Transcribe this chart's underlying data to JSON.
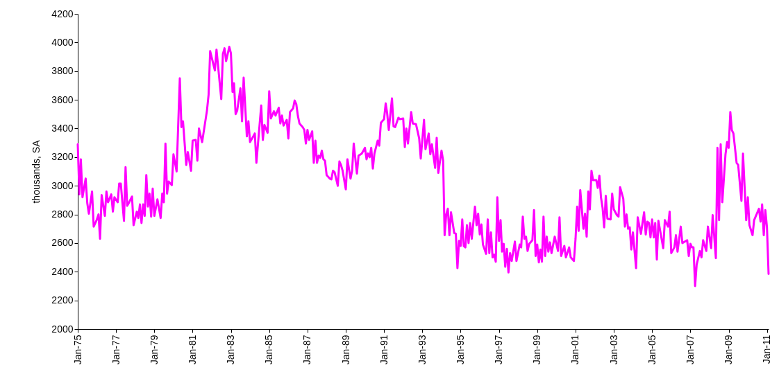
{
  "chart_data": {
    "type": "line",
    "ylabel": "thousands, SA",
    "line_style": "solid",
    "xlim": [
      "1975-01",
      "2011-02"
    ],
    "xticks": [
      {
        "value": "1975-01",
        "label": "Jan-75"
      },
      {
        "value": "1977-01",
        "label": "Jan-77"
      },
      {
        "value": "1979-01",
        "label": "Jan-79"
      },
      {
        "value": "1981-01",
        "label": "Jan-81"
      },
      {
        "value": "1983-01",
        "label": "Jan-83"
      },
      {
        "value": "1985-01",
        "label": "Jan-85"
      },
      {
        "value": "1987-01",
        "label": "Jan-87"
      },
      {
        "value": "1989-01",
        "label": "Jan-89"
      },
      {
        "value": "1991-01",
        "label": "Jan-91"
      },
      {
        "value": "1993-01",
        "label": "Jan-93"
      },
      {
        "value": "1995-01",
        "label": "Jan-95"
      },
      {
        "value": "1997-01",
        "label": "Jan-97"
      },
      {
        "value": "1999-01",
        "label": "Jan-99"
      },
      {
        "value": "2001-01",
        "label": "Jan-01"
      },
      {
        "value": "2003-01",
        "label": "Jan-03"
      },
      {
        "value": "2005-01",
        "label": "Jan-05"
      },
      {
        "value": "2007-01",
        "label": "Jan-07"
      },
      {
        "value": "2009-01",
        "label": "Jan-09"
      },
      {
        "value": "2011-01",
        "label": "Jan-11"
      }
    ],
    "ylim": [
      2000,
      4200
    ],
    "yticks": [
      2000,
      2200,
      2400,
      2600,
      2800,
      3000,
      3200,
      3400,
      3600,
      3800,
      4000,
      4200
    ],
    "x": [
      "1975-01",
      "1975-02",
      "1975-03",
      "1975-04",
      "1975-06",
      "1975-07",
      "1975-08",
      "1975-10",
      "1975-11",
      "1976-01",
      "1976-02",
      "1976-03",
      "1976-04",
      "1976-06",
      "1976-07",
      "1976-08",
      "1976-10",
      "1976-11",
      "1976-12",
      "1977-02",
      "1977-03",
      "1977-04",
      "1977-06",
      "1977-07",
      "1977-08",
      "1977-09",
      "1977-11",
      "1977-12",
      "1978-02",
      "1978-03",
      "1978-04",
      "1978-05",
      "1978-06",
      "1978-07",
      "1978-08",
      "1978-09",
      "1978-10",
      "1978-11",
      "1978-12",
      "1979-01",
      "1979-03",
      "1979-04",
      "1979-05",
      "1979-06",
      "1979-07",
      "1979-08",
      "1979-09",
      "1979-10",
      "1979-12",
      "1980-01",
      "1980-03",
      "1980-05",
      "1980-06",
      "1980-07",
      "1980-09",
      "1980-10",
      "1980-12",
      "1981-01",
      "1981-03",
      "1981-04",
      "1981-05",
      "1981-07",
      "1981-10",
      "1981-11",
      "1981-12",
      "1982-03",
      "1982-04",
      "1982-07",
      "1982-08",
      "1982-09",
      "1982-10",
      "1982-12",
      "1983-01",
      "1983-02",
      "1983-03",
      "1983-04",
      "1983-05",
      "1983-07",
      "1983-08",
      "1983-09",
      "1983-11",
      "1983-12",
      "1984-01",
      "1984-04",
      "1984-05",
      "1984-08",
      "1984-09",
      "1984-10",
      "1984-12",
      "1985-01",
      "1985-02",
      "1985-04",
      "1985-05",
      "1985-07",
      "1985-08",
      "1985-09",
      "1985-10",
      "1985-12",
      "1986-01",
      "1986-02",
      "1986-04",
      "1986-05",
      "1986-06",
      "1986-07",
      "1986-08",
      "1986-10",
      "1986-11",
      "1986-12",
      "1987-01",
      "1987-02",
      "1987-04",
      "1987-05",
      "1987-06",
      "1987-07",
      "1987-08",
      "1987-09",
      "1987-10",
      "1987-11",
      "1987-12",
      "1988-01",
      "1988-03",
      "1988-04",
      "1988-05",
      "1988-06",
      "1988-08",
      "1988-09",
      "1988-10",
      "1988-11",
      "1989-01",
      "1989-02",
      "1989-04",
      "1989-05",
      "1989-06",
      "1989-08",
      "1989-09",
      "1989-11",
      "1990-01",
      "1990-02",
      "1990-03",
      "1990-04",
      "1990-05",
      "1990-06",
      "1990-07",
      "1990-09",
      "1990-10",
      "1990-11",
      "1991-01",
      "1991-02",
      "1991-03",
      "1991-04",
      "1991-06",
      "1991-07",
      "1991-08",
      "1991-10",
      "1991-11",
      "1992-01",
      "1992-02",
      "1992-03",
      "1992-04",
      "1992-06",
      "1992-07",
      "1992-09",
      "1992-11",
      "1992-12",
      "1993-02",
      "1993-03",
      "1993-05",
      "1993-06",
      "1993-07",
      "1993-09",
      "1993-10",
      "1993-11",
      "1994-01",
      "1994-02",
      "1994-03",
      "1994-04",
      "1994-05",
      "1994-06",
      "1994-07",
      "1994-09",
      "1994-10",
      "1994-11",
      "1994-12",
      "1995-01",
      "1995-02",
      "1995-03",
      "1995-04",
      "1995-05",
      "1995-06",
      "1995-07",
      "1995-08",
      "1995-10",
      "1995-11",
      "1995-12",
      "1996-01",
      "1996-02",
      "1996-03",
      "1996-05",
      "1996-06",
      "1996-07",
      "1996-08",
      "1996-09",
      "1996-10",
      "1996-11",
      "1996-12",
      "1997-01",
      "1997-02",
      "1997-03",
      "1997-04",
      "1997-05",
      "1997-06",
      "1997-07",
      "1997-08",
      "1997-09",
      "1997-11",
      "1997-12",
      "1998-02",
      "1998-03",
      "1998-04",
      "1998-05",
      "1998-06",
      "1998-07",
      "1998-08",
      "1998-10",
      "1998-11",
      "1998-12",
      "1999-01",
      "1999-02",
      "1999-03",
      "1999-04",
      "1999-05",
      "1999-06",
      "1999-07",
      "1999-08",
      "1999-09",
      "1999-10",
      "1999-12",
      "2000-02",
      "2000-03",
      "2000-04",
      "2000-06",
      "2000-07",
      "2000-09",
      "2000-10",
      "2000-12",
      "2001-01",
      "2001-02",
      "2001-03",
      "2001-04",
      "2001-06",
      "2001-07",
      "2001-08",
      "2001-09",
      "2001-10",
      "2001-11",
      "2001-12",
      "2002-02",
      "2002-03",
      "2002-04",
      "2002-05",
      "2002-06",
      "2002-07",
      "2002-08",
      "2002-09",
      "2002-11",
      "2002-12",
      "2003-01",
      "2003-03",
      "2003-04",
      "2003-05",
      "2003-07",
      "2003-08",
      "2003-09",
      "2003-10",
      "2003-11",
      "2003-12",
      "2004-01",
      "2004-03",
      "2004-04",
      "2004-06",
      "2004-08",
      "2004-09",
      "2004-10",
      "2004-11",
      "2004-12",
      "2005-01",
      "2005-02",
      "2005-03",
      "2005-04",
      "2005-05",
      "2005-08",
      "2005-09",
      "2005-11",
      "2005-12",
      "2006-01",
      "2006-03",
      "2006-04",
      "2006-05",
      "2006-07",
      "2006-08",
      "2006-11",
      "2006-12",
      "2007-01",
      "2007-02",
      "2007-03",
      "2007-04",
      "2007-05",
      "2007-07",
      "2007-08",
      "2007-09",
      "2007-11",
      "2007-12",
      "2008-02",
      "2008-03",
      "2008-05",
      "2008-06",
      "2008-07",
      "2008-08",
      "2008-09",
      "2008-11",
      "2008-12",
      "2009-01",
      "2009-02",
      "2009-03",
      "2009-04",
      "2009-06",
      "2009-07",
      "2009-09",
      "2009-10",
      "2009-12",
      "2010-01",
      "2010-02",
      "2010-04",
      "2010-05",
      "2010-08",
      "2010-09",
      "2010-10",
      "2010-11",
      "2010-12",
      "2011-01",
      "2011-02"
    ],
    "series": [
      {
        "color": "#ff00ff",
        "values": [
          3290,
          2940,
          3185,
          2920,
          3050,
          2880,
          2805,
          2960,
          2715,
          2765,
          2800,
          2630,
          2935,
          2790,
          2960,
          2885,
          2940,
          2820,
          2920,
          2885,
          3015,
          3015,
          2755,
          3130,
          2860,
          2880,
          2925,
          2725,
          2820,
          2775,
          2870,
          2740,
          2870,
          2790,
          3075,
          2855,
          2945,
          2785,
          2980,
          2790,
          2905,
          2840,
          2775,
          2945,
          2885,
          3295,
          2945,
          3030,
          3005,
          3220,
          3100,
          3750,
          3410,
          3450,
          3145,
          3235,
          3105,
          3315,
          3320,
          3175,
          3400,
          3305,
          3525,
          3635,
          3940,
          3805,
          3950,
          3605,
          3920,
          3960,
          3870,
          3970,
          3925,
          3655,
          3715,
          3500,
          3525,
          3680,
          3450,
          3755,
          3345,
          3450,
          3305,
          3365,
          3160,
          3560,
          3320,
          3425,
          3370,
          3660,
          3470,
          3520,
          3490,
          3545,
          3435,
          3490,
          3420,
          3460,
          3330,
          3515,
          3540,
          3595,
          3570,
          3490,
          3435,
          3410,
          3390,
          3295,
          3390,
          3320,
          3380,
          3160,
          3315,
          3160,
          3210,
          3195,
          3245,
          3185,
          3175,
          3075,
          3050,
          3045,
          3105,
          3095,
          3000,
          3170,
          3145,
          3105,
          2975,
          3185,
          3050,
          3105,
          3295,
          3085,
          3210,
          3225,
          3265,
          3185,
          3225,
          3200,
          3265,
          3120,
          3225,
          3315,
          3280,
          3440,
          3465,
          3575,
          3505,
          3390,
          3610,
          3415,
          3410,
          3475,
          3465,
          3470,
          3270,
          3400,
          3295,
          3515,
          3435,
          3430,
          3330,
          3190,
          3460,
          3255,
          3365,
          3220,
          3290,
          3125,
          3335,
          3090,
          3245,
          3175,
          2655,
          2800,
          2840,
          2655,
          2815,
          2670,
          2665,
          2425,
          2615,
          2580,
          2765,
          2580,
          2570,
          2725,
          2600,
          2740,
          2630,
          2855,
          2725,
          2805,
          2660,
          2730,
          2590,
          2525,
          2765,
          2530,
          2675,
          2500,
          2520,
          2470,
          2920,
          2615,
          2760,
          2540,
          2595,
          2435,
          2560,
          2395,
          2530,
          2475,
          2610,
          2475,
          2590,
          2570,
          2785,
          2630,
          2645,
          2545,
          2595,
          2620,
          2830,
          2510,
          2590,
          2465,
          2555,
          2470,
          2785,
          2510,
          2645,
          2540,
          2605,
          2530,
          2645,
          2545,
          2780,
          2510,
          2580,
          2500,
          2570,
          2500,
          2475,
          2630,
          2855,
          2685,
          2970,
          2700,
          2805,
          2645,
          2960,
          2835,
          3105,
          3040,
          3040,
          2985,
          3070,
          2920,
          2845,
          2710,
          2930,
          2770,
          2765,
          2945,
          2835,
          2795,
          2785,
          2990,
          2910,
          2715,
          2800,
          2700,
          2710,
          2555,
          2675,
          2425,
          2780,
          2665,
          2815,
          2660,
          2750,
          2740,
          2640,
          2765,
          2640,
          2740,
          2485,
          2755,
          2565,
          2760,
          2715,
          2820,
          2530,
          2570,
          2655,
          2540,
          2715,
          2600,
          2620,
          2510,
          2595,
          2570,
          2570,
          2300,
          2450,
          2545,
          2500,
          2620,
          2545,
          2715,
          2565,
          2795,
          2495,
          3265,
          2760,
          3290,
          2885,
          3220,
          3305,
          3265,
          3515,
          3390,
          3365,
          3160,
          3145,
          2895,
          3225,
          2760,
          2920,
          2725,
          2655,
          2760,
          2840,
          2750,
          2870,
          2655,
          2830,
          2710,
          2385
        ]
      }
    ]
  }
}
